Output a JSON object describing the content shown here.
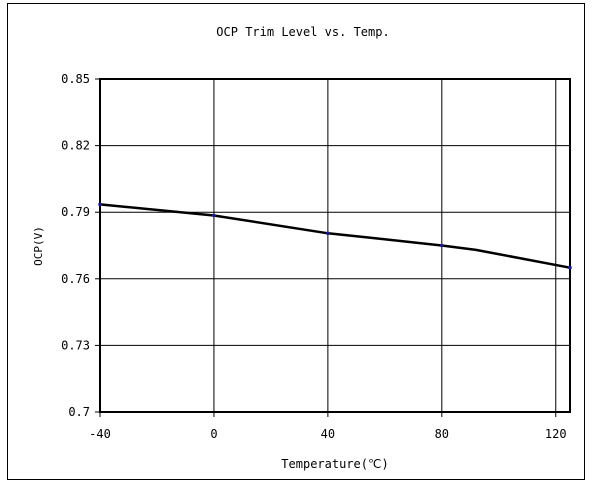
{
  "chart_data": {
    "type": "line",
    "title": "OCP Trim Level vs. Temp.",
    "xlabel": "Temperature(℃)",
    "ylabel": "OCP(V)",
    "xlim": [
      -40,
      125
    ],
    "ylim": [
      0.7,
      0.85
    ],
    "x_ticks": [
      -40,
      0,
      40,
      80,
      120
    ],
    "x_tick_labels": [
      "-40",
      "0",
      "40",
      "80",
      "120"
    ],
    "y_ticks": [
      0.7,
      0.73,
      0.76,
      0.79,
      0.82,
      0.85
    ],
    "y_tick_labels": [
      "0.7",
      "0.73",
      "0.76",
      "0.79",
      "0.82",
      "0.85"
    ],
    "grid": true,
    "legend": "none",
    "series": [
      {
        "color": "#000000",
        "marker_color": "#1a1a8c",
        "points": [
          {
            "x": -40,
            "y": 0.7935
          },
          {
            "x": 0,
            "y": 0.7885
          },
          {
            "x": 40,
            "y": 0.7805
          },
          {
            "x": 55,
            "y": 0.7785
          },
          {
            "x": 80,
            "y": 0.775
          },
          {
            "x": 92,
            "y": 0.773
          },
          {
            "x": 125,
            "y": 0.765
          }
        ],
        "markers_at": [
          -40,
          0,
          40,
          80,
          125
        ]
      }
    ]
  }
}
